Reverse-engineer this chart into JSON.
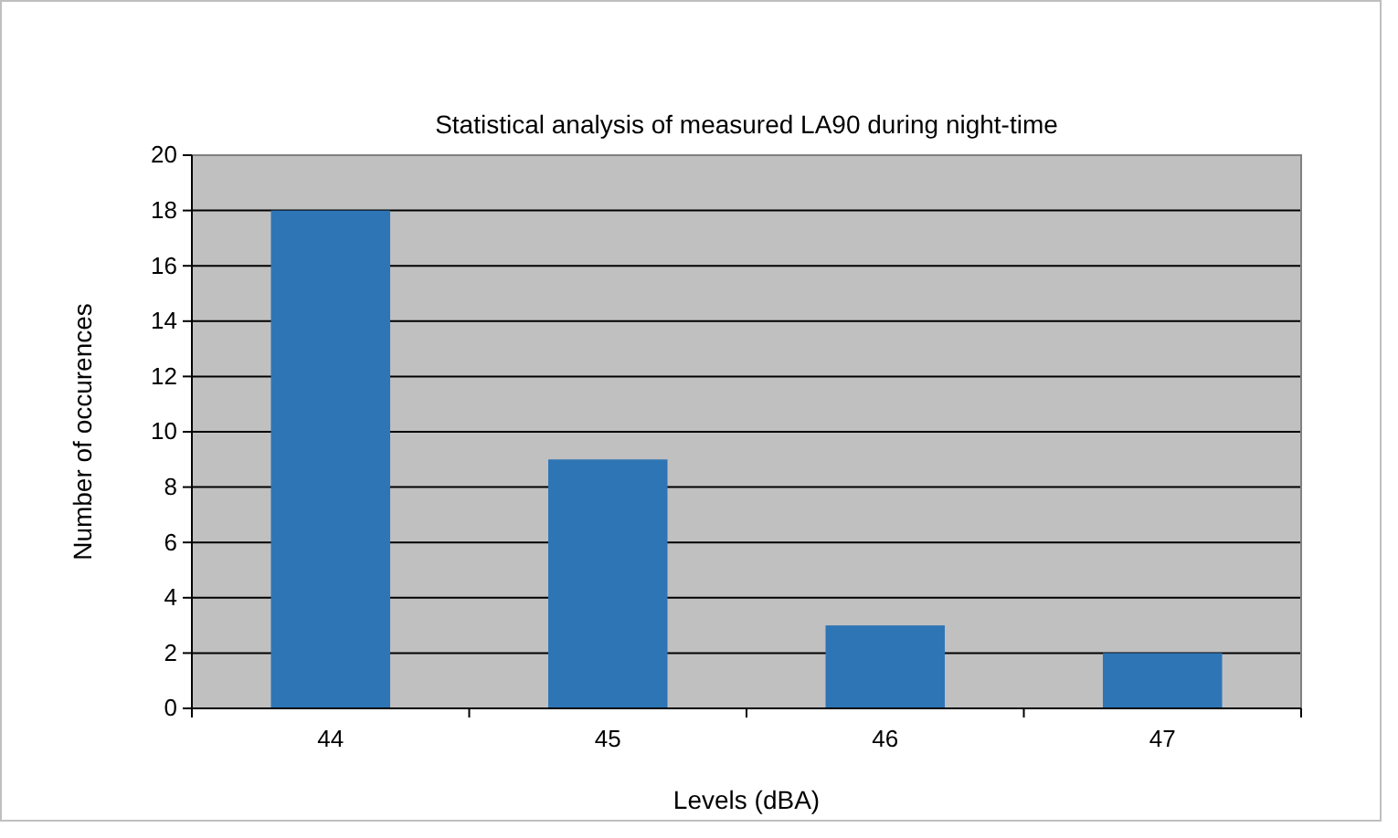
{
  "chart_data": {
    "type": "bar",
    "title": "Statistical analysis of measured LA90 during night-time",
    "xlabel": "Levels (dBA)",
    "ylabel": "Number of occurences",
    "categories": [
      "44",
      "45",
      "46",
      "47"
    ],
    "values": [
      18,
      9,
      3,
      2
    ],
    "color": "#2e75b6",
    "ylim": [
      0,
      20
    ],
    "yticks": [
      0,
      2,
      4,
      6,
      8,
      10,
      12,
      14,
      16,
      18,
      20
    ],
    "grid": "y"
  }
}
